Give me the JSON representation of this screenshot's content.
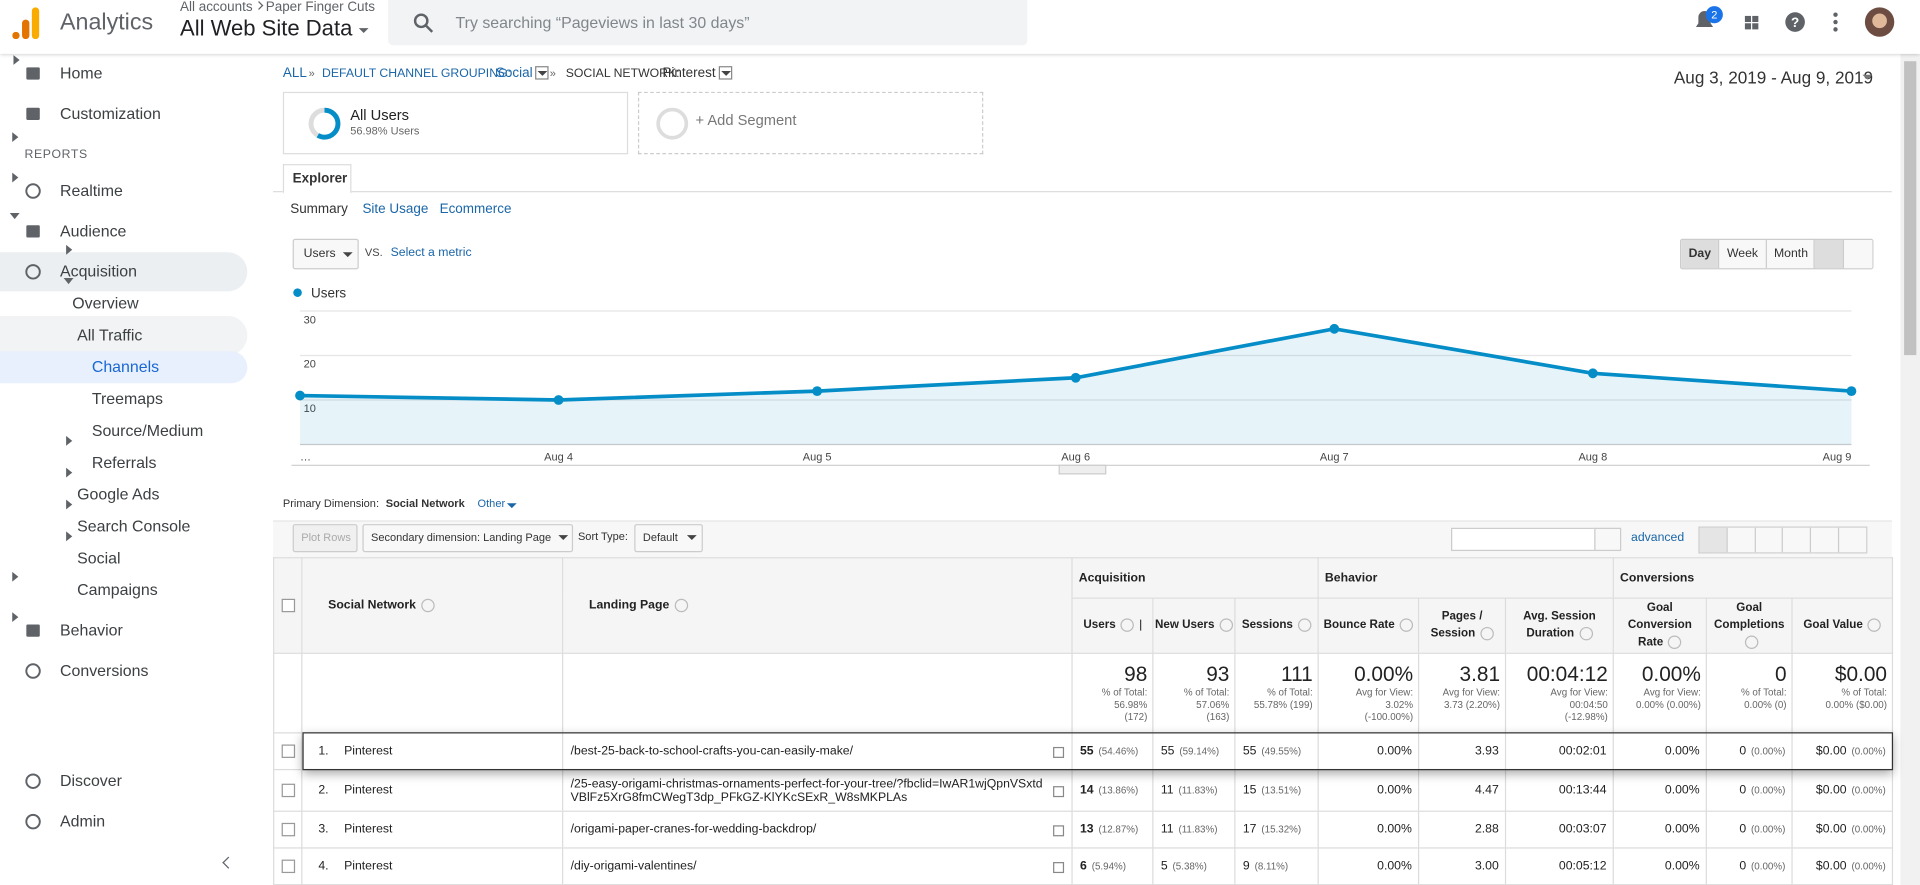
{
  "header": {
    "product": "Analytics",
    "account_path": [
      "All accounts",
      "Paper Finger Cuts"
    ],
    "view": "All Web Site Data",
    "search_placeholder": "Try searching “Pageviews in last 30 days”",
    "notifications": "2"
  },
  "sidebar": {
    "top": [
      "Home",
      "Customization"
    ],
    "section_title": "REPORTS",
    "reports": [
      "Realtime",
      "Audience",
      {
        "label": "Acquisition",
        "items": [
          "Overview",
          {
            "label": "All Traffic",
            "items": [
              "Channels",
              "Treemaps",
              "Source/Medium",
              "Referrals"
            ]
          },
          "Google Ads",
          "Search Console",
          "Social",
          "Campaigns"
        ]
      },
      "Behavior",
      "Conversions"
    ],
    "bottom": [
      "Discover",
      "Admin"
    ]
  },
  "breadcrumb": [
    "ALL",
    "DEFAULT CHANNEL GROUPING:",
    "Social",
    "SOCIAL NETWORK:",
    "Pinterest"
  ],
  "date_range": "Aug 3, 2019 - Aug 9, 2019",
  "segments": {
    "active": {
      "name": "All Users",
      "detail": "56.98% Users"
    },
    "add": "+ Add Segment"
  },
  "tabs": {
    "main": "Explorer",
    "sub": [
      "Summary",
      "Site Usage",
      "Ecommerce"
    ]
  },
  "chart": {
    "type": "line",
    "metric": "Users",
    "vs": "VS.",
    "compare": "Select a metric",
    "granularity": [
      "Day",
      "Week",
      "Month"
    ],
    "categories": [
      "…",
      "Aug 4",
      "Aug 5",
      "Aug 6",
      "Aug 7",
      "Aug 8",
      "Aug 9"
    ],
    "series": [
      {
        "name": "Users",
        "color": "#058dc7",
        "values": [
          11,
          10,
          12,
          15,
          26,
          16,
          12
        ]
      }
    ],
    "ylim": [
      0,
      30
    ],
    "yticks": [
      10,
      20,
      30
    ],
    "grid": true
  },
  "dimensions": {
    "label": "Primary Dimension:",
    "current": "Social Network",
    "other": "Other"
  },
  "table_controls": {
    "plot_rows": "Plot Rows",
    "secondary": "Secondary dimension: Landing Page",
    "sort_label": "Sort Type:",
    "sort": "Default",
    "advanced": "advanced"
  },
  "table": {
    "groups": [
      "Acquisition",
      "Behavior",
      "Conversions"
    ],
    "dimension_headers": [
      "Social Network",
      "Landing Page"
    ],
    "metric_headers": [
      "Users",
      "New Users",
      "Sessions",
      "Bounce Rate",
      "Pages / Session",
      "Avg. Session Duration",
      "Goal Conversion Rate",
      "Goal Completions",
      "Goal Value"
    ],
    "totals": [
      {
        "value": "98",
        "lines": [
          "% of Total:",
          "56.98%",
          "(172)"
        ]
      },
      {
        "value": "93",
        "lines": [
          "% of Total:",
          "57.06%",
          "(163)"
        ]
      },
      {
        "value": "111",
        "lines": [
          "% of Total:",
          "55.78% (199)"
        ]
      },
      {
        "value": "0.00%",
        "lines": [
          "Avg for View:",
          "3.02%",
          "(-100.00%)"
        ]
      },
      {
        "value": "3.81",
        "lines": [
          "Avg for View:",
          "3.73 (2.20%)"
        ]
      },
      {
        "value": "00:04:12",
        "lines": [
          "Avg for View:",
          "00:04:50",
          "(-12.98%)"
        ]
      },
      {
        "value": "0.00%",
        "lines": [
          "Avg for View:",
          "0.00% (0.00%)"
        ]
      },
      {
        "value": "0",
        "lines": [
          "% of Total:",
          "0.00% (0)"
        ]
      },
      {
        "value": "$0.00",
        "lines": [
          "% of Total:",
          "0.00% ($0.00)"
        ]
      }
    ],
    "rows": [
      {
        "index": "1.",
        "network": "Pinterest",
        "page": "/best-25-back-to-school-crafts-you-can-easily-make/",
        "cells": [
          [
            "55",
            "(54.46%)"
          ],
          [
            "55",
            "(59.14%)"
          ],
          [
            "55",
            "(49.55%)"
          ],
          [
            "0.00%"
          ],
          [
            "3.93"
          ],
          [
            "00:02:01"
          ],
          [
            "0.00%"
          ],
          [
            "0",
            "(0.00%)"
          ],
          [
            "$0.00",
            "(0.00%)"
          ]
        ]
      },
      {
        "index": "2.",
        "network": "Pinterest",
        "page": "/25-easy-origami-christmas-ornaments-perfect-for-your-tree/?fbclid=IwAR1wjQpnVSxtdVBlFz5XrG8fmCWegT3dp_PFkGZ-KlYKcSExR_W8sMKPLAs",
        "cells": [
          [
            "14",
            "(13.86%)"
          ],
          [
            "11",
            "(11.83%)"
          ],
          [
            "15",
            "(13.51%)"
          ],
          [
            "0.00%"
          ],
          [
            "4.47"
          ],
          [
            "00:13:44"
          ],
          [
            "0.00%"
          ],
          [
            "0",
            "(0.00%)"
          ],
          [
            "$0.00",
            "(0.00%)"
          ]
        ]
      },
      {
        "index": "3.",
        "network": "Pinterest",
        "page": "/origami-paper-cranes-for-wedding-backdrop/",
        "cells": [
          [
            "13",
            "(12.87%)"
          ],
          [
            "11",
            "(11.83%)"
          ],
          [
            "17",
            "(15.32%)"
          ],
          [
            "0.00%"
          ],
          [
            "2.88"
          ],
          [
            "00:03:07"
          ],
          [
            "0.00%"
          ],
          [
            "0",
            "(0.00%)"
          ],
          [
            "$0.00",
            "(0.00%)"
          ]
        ]
      },
      {
        "index": "4.",
        "network": "Pinterest",
        "page": "/diy-origami-valentines/",
        "cells": [
          [
            "6",
            "(5.94%)"
          ],
          [
            "5",
            "(5.38%)"
          ],
          [
            "9",
            "(8.11%)"
          ],
          [
            "0.00%"
          ],
          [
            "3.00"
          ],
          [
            "00:05:12"
          ],
          [
            "0.00%"
          ],
          [
            "0",
            "(0.00%)"
          ],
          [
            "$0.00",
            "(0.00%)"
          ]
        ]
      }
    ]
  }
}
